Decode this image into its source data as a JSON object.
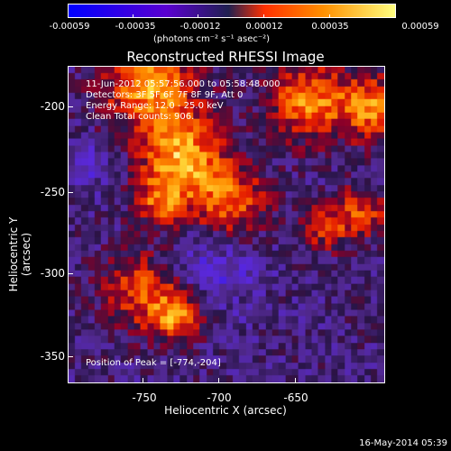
{
  "colorbar": {
    "ticks": [
      "-0.00059",
      "-0.00035",
      "-0.00012",
      "0.00012",
      "0.00035",
      "0.00059"
    ],
    "units": "(photons cm⁻² s⁻¹ asec⁻²)",
    "colors": [
      "#0000ff",
      "#5a00d0",
      "#202050",
      "#ff3000",
      "#ff9000",
      "#ffff80"
    ]
  },
  "title": "Reconstructed RHESSI Image",
  "info": {
    "time": "11-Jun-2012 05:57:56.000 to 05:58:48.000",
    "detectors": "Detectors: 3F 5F 6F 7F 8F 9F, Att 0",
    "energy": "Energy Range: 12.0 - 25.0 keV",
    "clean": "Clean   Total counts: 906.",
    "peak": "Position of Peak = [-774,-204]"
  },
  "axes": {
    "x_title": "Heliocentric X (arcsec)",
    "y_title": "Heliocentric Y (arcsec)",
    "x_ticks": [
      "-750",
      "-700",
      "-650"
    ],
    "y_ticks": [
      "-200",
      "-250",
      "-300",
      "-350"
    ]
  },
  "footer": "16-May-2014 05:39"
}
